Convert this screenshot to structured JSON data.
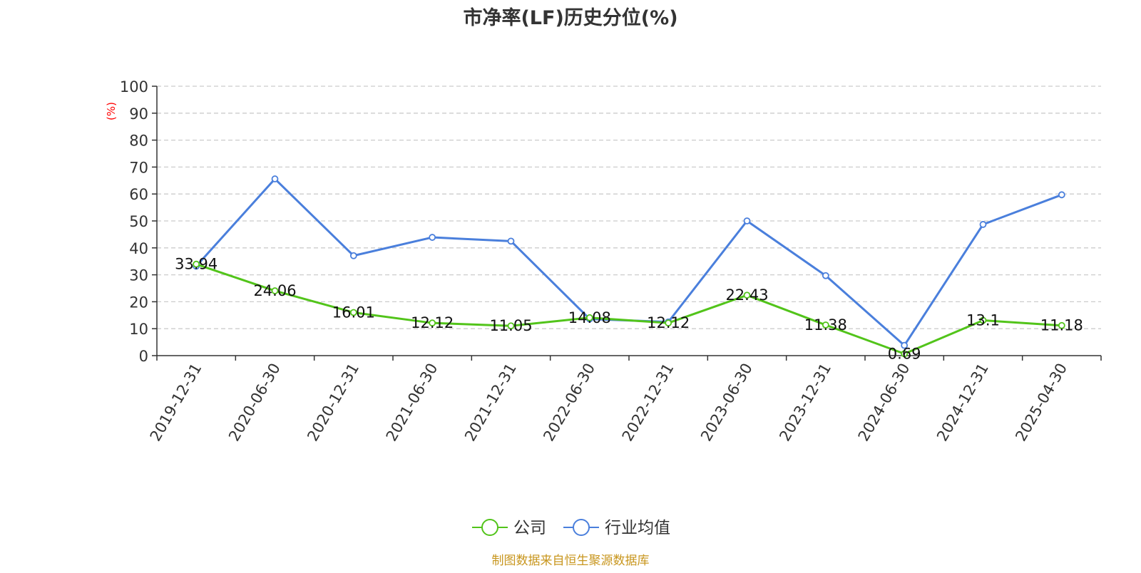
{
  "chart_data": {
    "type": "line",
    "title": "市净率(LF)历史分位(%)",
    "ylabel": "(%)",
    "ylim": [
      0,
      100
    ],
    "yticks": [
      0,
      10,
      20,
      30,
      40,
      50,
      60,
      70,
      80,
      90,
      100
    ],
    "grid": true,
    "categories": [
      "2019-12-31",
      "2020-06-30",
      "2020-12-31",
      "2021-06-30",
      "2021-12-31",
      "2022-06-30",
      "2022-12-31",
      "2023-06-30",
      "2023-12-31",
      "2024-06-30",
      "2024-12-31",
      "2025-04-30"
    ],
    "series": [
      {
        "name": "公司",
        "color": "#52c41a",
        "values": [
          33.94,
          24.06,
          16.01,
          12.12,
          11.05,
          14.08,
          12.12,
          22.43,
          11.38,
          0.69,
          13.1,
          11.18
        ],
        "labels": [
          "33.94",
          "24.06",
          "16.01",
          "12.12",
          "11.05",
          "14.08",
          "12.12",
          "22.43",
          "11.38",
          "0.69",
          "13.1",
          "11.18"
        ]
      },
      {
        "name": "行业均值",
        "color": "#4a7fdc",
        "values": [
          33.2,
          65.6,
          37.1,
          43.9,
          42.5,
          13.6,
          12.5,
          50.0,
          29.7,
          3.8,
          48.7,
          59.7
        ]
      }
    ],
    "legend_position": "bottom-center",
    "source": "制图数据来自恒生聚源数据库",
    "colors": {
      "title": "#333333",
      "axis": "#333333",
      "grid": "#cccccc",
      "ylabel": "#ff0000",
      "source": "#c8961e"
    }
  }
}
